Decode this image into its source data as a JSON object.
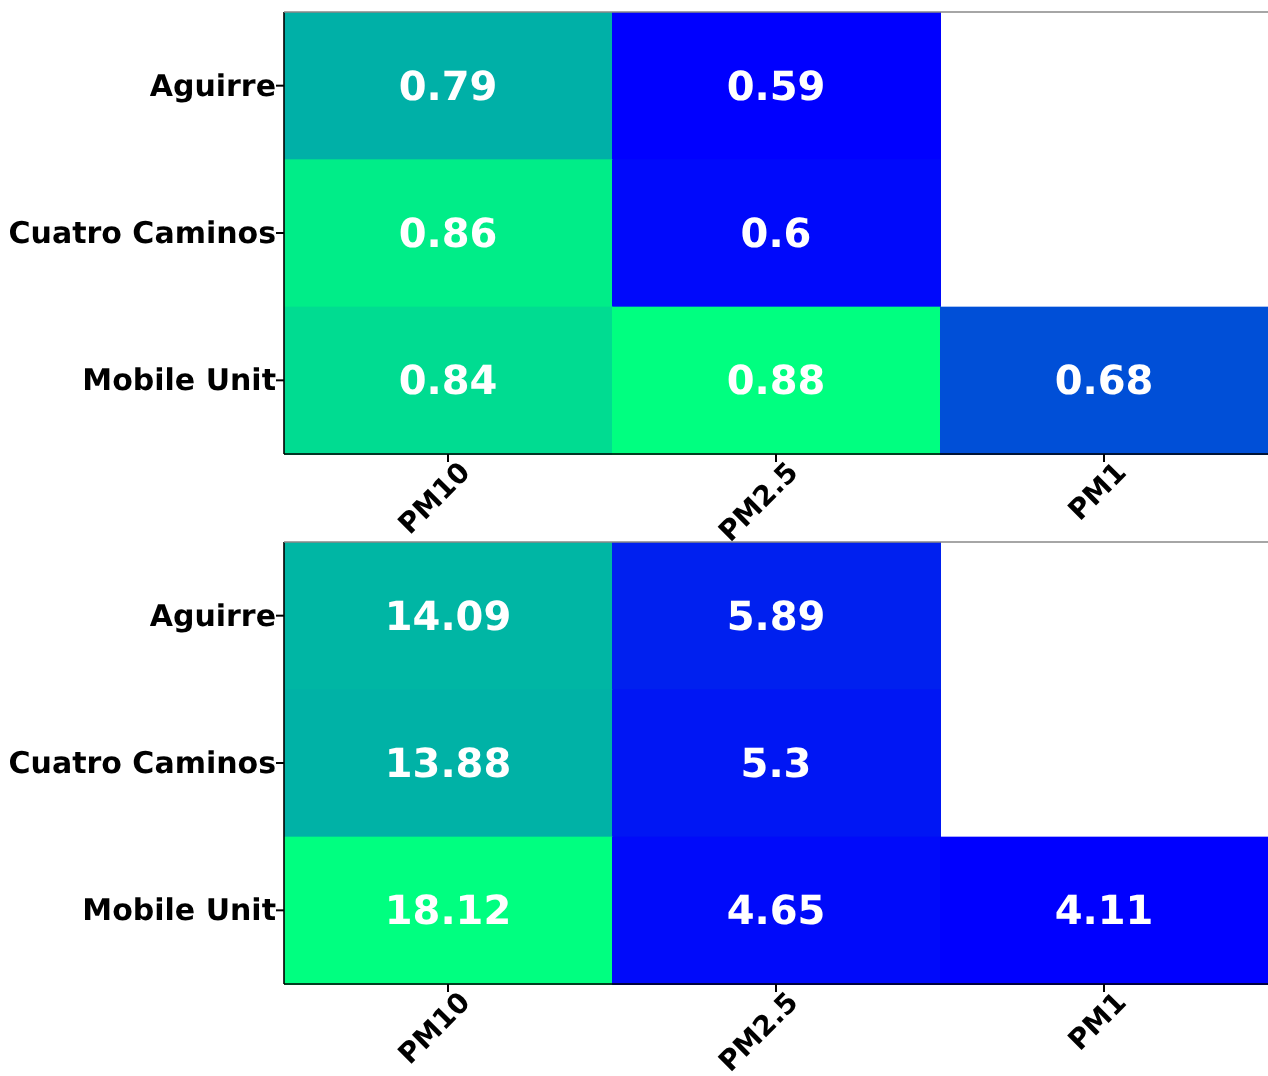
{
  "chart_data": [
    {
      "type": "heatmap",
      "data_labels": true,
      "categories": [
        "PM10",
        "PM2.5",
        "PM1"
      ],
      "y_categories": [
        "Aguirre",
        "Cuatro Caminos",
        "Mobile Unit"
      ],
      "cells": [
        [
          0.79,
          0.59,
          null
        ],
        [
          0.86,
          0.6,
          null
        ],
        [
          0.84,
          0.88,
          0.68
        ]
      ]
    },
    {
      "type": "heatmap",
      "data_labels": true,
      "categories": [
        "PM10",
        "PM2.5",
        "PM1"
      ],
      "y_categories": [
        "Aguirre",
        "Cuatro Caminos",
        "Mobile Unit"
      ],
      "cells": [
        [
          14.09,
          5.89,
          null
        ],
        [
          13.88,
          5.3,
          null
        ],
        [
          18.12,
          4.65,
          4.11
        ]
      ]
    }
  ]
}
